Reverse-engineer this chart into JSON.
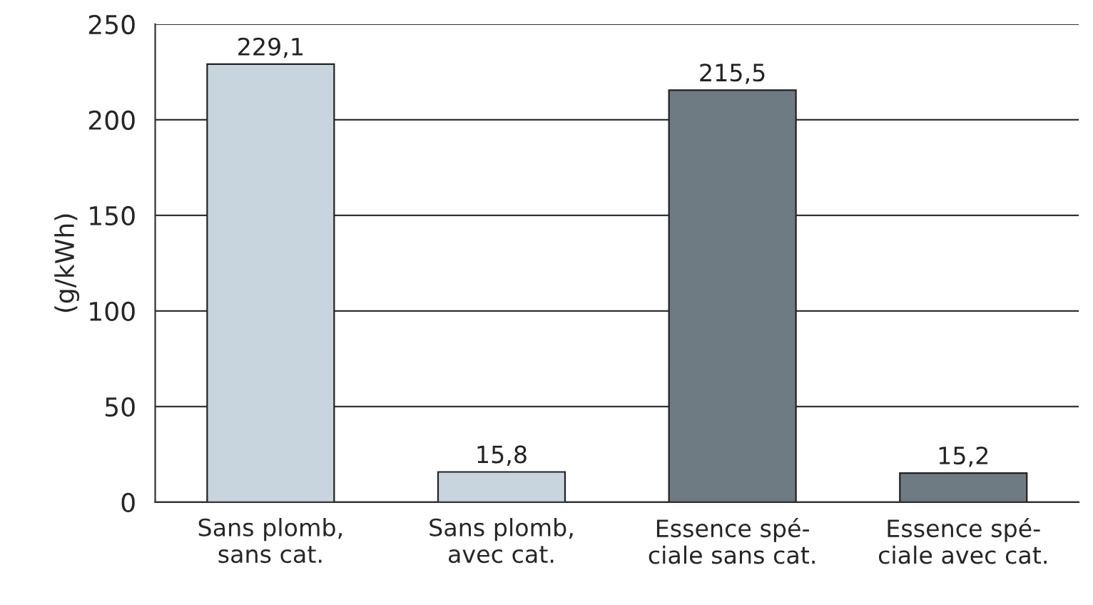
{
  "chart_data": {
    "type": "bar",
    "ylabel": "(g/kWh)",
    "categories": [
      "Sans plomb,\nsans cat.",
      "Sans plomb,\navec cat.",
      "Essence spé-\nciale sans cat.",
      "Essence spé-\nciale avec cat."
    ],
    "values": [
      229.1,
      15.8,
      215.5,
      15.2
    ],
    "value_labels": [
      "229,1",
      "15,8",
      "215,5",
      "15,2"
    ],
    "colors": [
      "#c8d5de",
      "#c8d5de",
      "#6f7b82",
      "#6f7b82"
    ],
    "ylim": [
      0,
      250
    ],
    "yticks": [
      0,
      50,
      100,
      150,
      200,
      250
    ],
    "grid": "y"
  }
}
